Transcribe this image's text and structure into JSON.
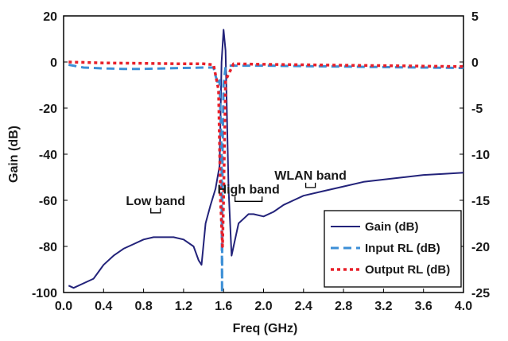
{
  "chart_data": {
    "type": "line",
    "xlabel": "Freq (GHz)",
    "ylabel": "Gain (dB)",
    "xlim": [
      0.0,
      4.0
    ],
    "ylim": [
      -100,
      20
    ],
    "y2lim": [
      -25,
      5
    ],
    "x_ticks": [
      "0.0",
      "0.4",
      "0.8",
      "1.2",
      "1.6",
      "2.0",
      "2.4",
      "2.8",
      "3.2",
      "3.6",
      "4.0"
    ],
    "y_ticks": [
      "20",
      "0",
      "-20",
      "-40",
      "-60",
      "-80",
      "-100"
    ],
    "y2_ticks": [
      "5",
      "0",
      "-5",
      "-10",
      "-15",
      "-20",
      "-25"
    ],
    "grid": false,
    "legend_position": "bottom-right",
    "series": [
      {
        "name": "Gain (dB)",
        "axis": "left",
        "color": "#23237a",
        "style": "solid",
        "x": [
          0.05,
          0.1,
          0.2,
          0.3,
          0.4,
          0.5,
          0.6,
          0.7,
          0.8,
          0.9,
          1.0,
          1.1,
          1.2,
          1.3,
          1.35,
          1.38,
          1.42,
          1.47,
          1.52,
          1.56,
          1.58,
          1.6,
          1.62,
          1.65,
          1.68,
          1.7,
          1.75,
          1.8,
          1.85,
          1.9,
          2.0,
          2.1,
          2.2,
          2.3,
          2.4,
          2.6,
          2.8,
          3.0,
          3.2,
          3.4,
          3.6,
          3.8,
          4.0
        ],
        "y": [
          -97,
          -98,
          -96,
          -94,
          -88,
          -84,
          -81,
          -79,
          -77,
          -76,
          -76,
          -76,
          -77,
          -80,
          -86,
          -88,
          -70,
          -62,
          -55,
          -45,
          0,
          14,
          5,
          -55,
          -84,
          -80,
          -70,
          -68,
          -66,
          -66,
          -67,
          -65,
          -62,
          -60,
          -58,
          -56,
          -54,
          -52,
          -51,
          -50,
          -49,
          -48.5,
          -48
        ]
      },
      {
        "name": "Input RL (dB)",
        "axis": "right",
        "color": "#3c8fd6",
        "style": "dashed",
        "x": [
          0.05,
          0.2,
          0.4,
          0.6,
          0.8,
          1.0,
          1.2,
          1.4,
          1.5,
          1.52,
          1.55,
          1.56,
          1.58,
          1.585,
          1.59,
          1.6,
          1.62,
          1.65,
          1.8,
          2.0,
          2.4,
          2.8,
          3.2,
          3.6,
          4.0
        ],
        "y": [
          -0.3,
          -0.6,
          -0.7,
          -0.75,
          -0.75,
          -0.7,
          -0.65,
          -0.6,
          -0.6,
          -1.5,
          -2.5,
          -2.0,
          -10,
          -25,
          -10,
          -2.5,
          -0.5,
          -0.4,
          -0.4,
          -0.4,
          -0.45,
          -0.5,
          -0.55,
          -0.6,
          -0.65
        ]
      },
      {
        "name": "Output RL (dB)",
        "axis": "right",
        "color": "#e8202a",
        "style": "dotted",
        "x": [
          0.05,
          0.4,
          0.8,
          1.2,
          1.4,
          1.5,
          1.55,
          1.57,
          1.59,
          1.6,
          1.62,
          1.7,
          2.0,
          2.4,
          2.8,
          3.2,
          3.6,
          4.0
        ],
        "y": [
          0.0,
          -0.1,
          -0.15,
          -0.2,
          -0.2,
          -0.3,
          -3,
          -15,
          -20,
          -15,
          -2,
          -0.2,
          -0.25,
          -0.3,
          -0.35,
          -0.4,
          -0.45,
          -0.5
        ]
      }
    ],
    "annotations": [
      {
        "text": "Low band",
        "x": 0.92,
        "y": -62
      },
      {
        "text": "High band",
        "x": 1.85,
        "y": -57
      },
      {
        "text": "WLAN band",
        "x": 2.47,
        "y": -51
      }
    ]
  }
}
